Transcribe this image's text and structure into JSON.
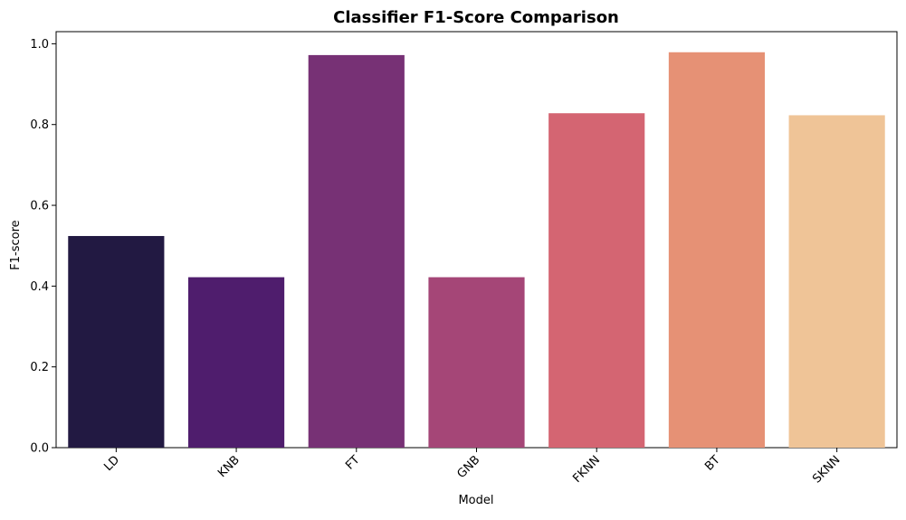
{
  "chart_data": {
    "type": "bar",
    "title": "Classifier F1-Score Comparison",
    "xlabel": "Model",
    "ylabel": "F1-score",
    "categories": [
      "LD",
      "KNB",
      "FT",
      "GNB",
      "FKNN",
      "BT",
      "SKNN"
    ],
    "values": [
      0.524,
      0.422,
      0.972,
      0.422,
      0.828,
      0.979,
      0.823
    ],
    "colors": [
      "#221942",
      "#4f1d6d",
      "#773175",
      "#a54677",
      "#d46572",
      "#e69175",
      "#efc497"
    ],
    "ylim": [
      0,
      1.03
    ],
    "yticks": [
      0.0,
      0.2,
      0.4,
      0.6,
      0.8,
      1.0
    ],
    "ytick_labels": [
      "0.0",
      "0.2",
      "0.4",
      "0.6",
      "0.8",
      "1.0"
    ],
    "grid": false,
    "legend": "none"
  }
}
